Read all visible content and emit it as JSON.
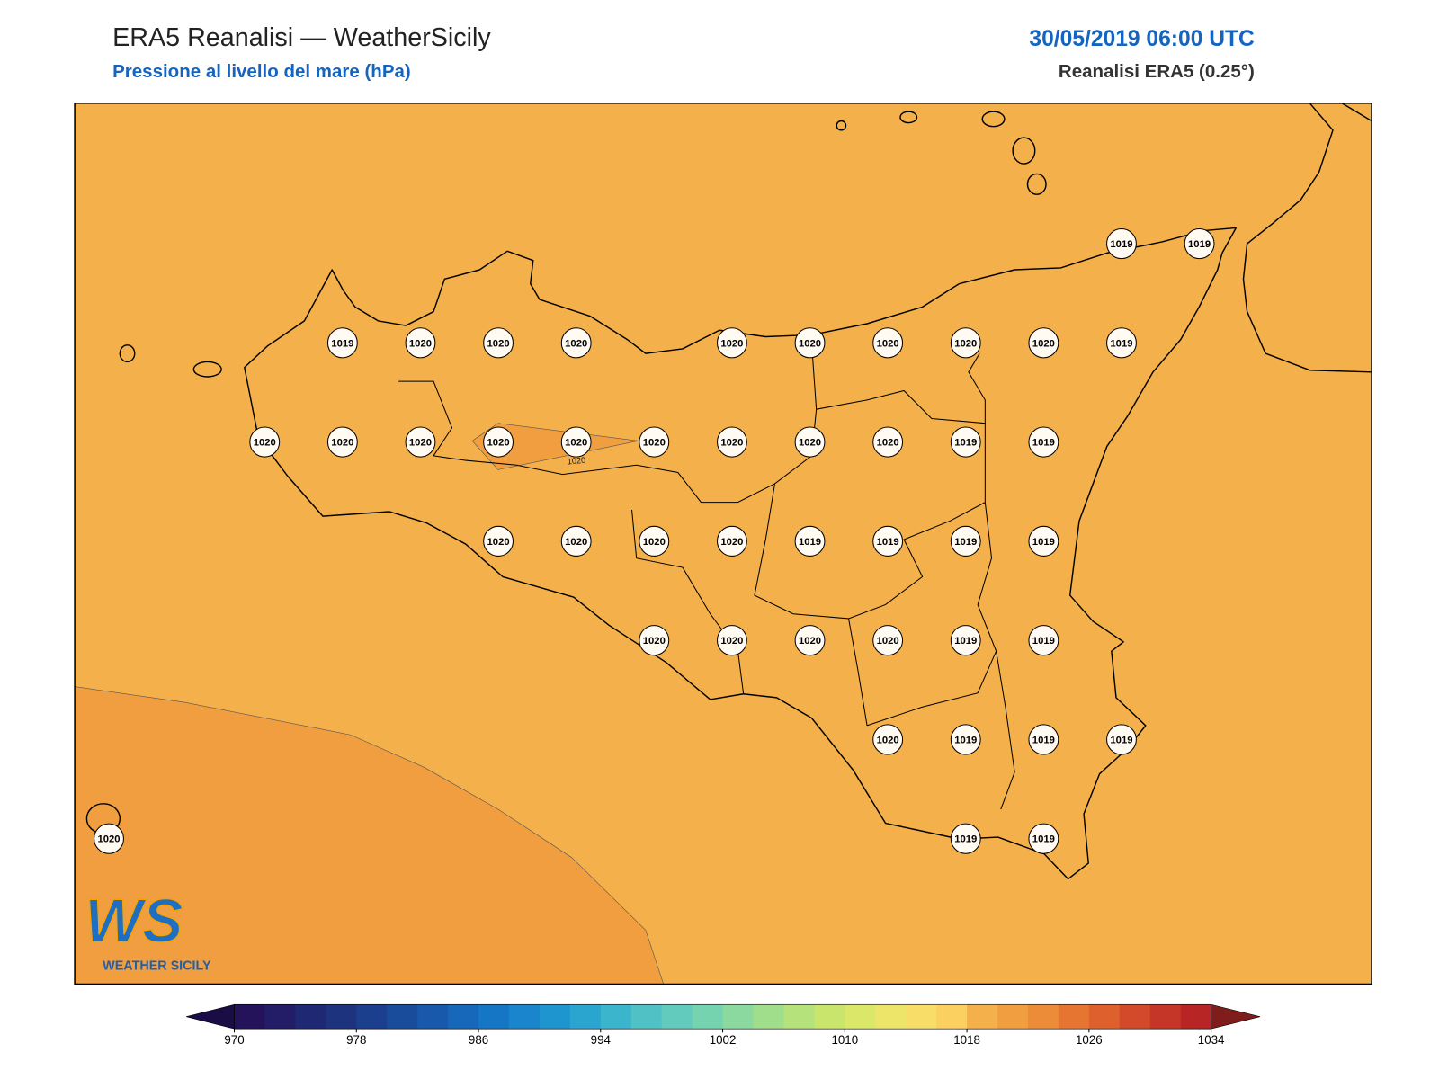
{
  "header": {
    "title": "ERA5 Reanalisi — WeatherSicily",
    "subtitle": "Pressione al livello del mare (hPa)",
    "datetime": "30/05/2019 06:00 UTC",
    "source": "Reanalisi ERA5 (0.25°)"
  },
  "map": {
    "contour_label": "1020",
    "pressure_grid": [
      [
        null,
        null,
        null,
        null,
        null,
        null,
        null,
        null,
        null,
        null,
        null,
        null,
        null,
        1019,
        1019
      ],
      [
        null,
        null,
        null,
        1019,
        1020,
        1020,
        1020,
        null,
        1020,
        1020,
        1020,
        1020,
        1020,
        1019,
        null
      ],
      [
        null,
        null,
        1020,
        1020,
        1020,
        1020,
        1020,
        1020,
        1020,
        1020,
        1020,
        1019,
        1019,
        null,
        null
      ],
      [
        null,
        null,
        null,
        null,
        null,
        1020,
        1020,
        1020,
        1020,
        1019,
        1019,
        1019,
        1019,
        null,
        null
      ],
      [
        null,
        null,
        null,
        null,
        null,
        null,
        null,
        1020,
        1020,
        1020,
        1020,
        1019,
        1019,
        null,
        null
      ],
      [
        null,
        null,
        null,
        null,
        null,
        null,
        null,
        null,
        null,
        null,
        1020,
        1019,
        1019,
        1019,
        null
      ],
      [
        1020,
        null,
        null,
        null,
        null,
        null,
        null,
        null,
        null,
        null,
        null,
        1019,
        1019,
        null,
        null
      ]
    ]
  },
  "logo": {
    "mark": "WS",
    "name": "WEATHER SICILY"
  },
  "colorbar": {
    "min": 970,
    "max": 1034,
    "ticks": [
      970,
      978,
      986,
      994,
      1002,
      1010,
      1018,
      1026,
      1034
    ],
    "colors": [
      "#24135a",
      "#221d66",
      "#1f2872",
      "#1d337e",
      "#1b3f8c",
      "#1a4c9c",
      "#1859ab",
      "#1767ba",
      "#1676c6",
      "#1a85cc",
      "#1f95cf",
      "#2aa5cf",
      "#3bb5cc",
      "#50c1c5",
      "#62cbbd",
      "#76d3af",
      "#8bd99e",
      "#a0de8c",
      "#b5e27a",
      "#c9e56c",
      "#dbe769",
      "#ece56a",
      "#f8dd68",
      "#fbd060",
      "#f4b04a",
      "#f09e40",
      "#ec8b38",
      "#e67532",
      "#de602d",
      "#d34a2a",
      "#c63628",
      "#b82525"
    ],
    "under_color": "#1a0d45",
    "over_color": "#7f1d1d"
  }
}
